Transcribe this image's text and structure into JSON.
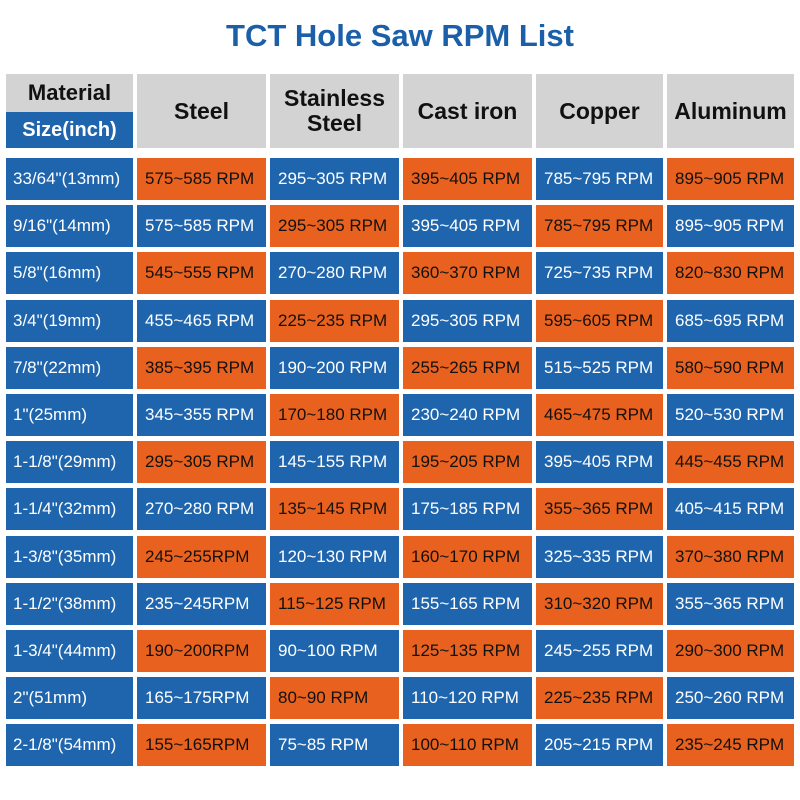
{
  "title": "TCT Hole Saw RPM List",
  "header": {
    "material_label": "Material",
    "size_label": "Size(inch)",
    "columns": [
      "Steel",
      "Stainless\nSteel",
      "Cast iron",
      "Copper",
      "Aluminum"
    ]
  },
  "rows": [
    {
      "size": "33/64\"(13mm)",
      "values": [
        "575~585 RPM",
        "295~305 RPM",
        "395~405 RPM",
        "785~795 RPM",
        "895~905 RPM"
      ]
    },
    {
      "size": "9/16\"(14mm)",
      "values": [
        "575~585 RPM",
        "295~305 RPM",
        "395~405 RPM",
        "785~795 RPM",
        "895~905 RPM"
      ]
    },
    {
      "size": "5/8\"(16mm)",
      "values": [
        "545~555 RPM",
        "270~280 RPM",
        "360~370 RPM",
        "725~735 RPM",
        "820~830 RPM"
      ]
    },
    {
      "size": "3/4\"(19mm)",
      "values": [
        "455~465 RPM",
        "225~235 RPM",
        "295~305 RPM",
        "595~605 RPM",
        "685~695 RPM"
      ]
    },
    {
      "size": "7/8\"(22mm)",
      "values": [
        "385~395 RPM",
        "190~200 RPM",
        "255~265 RPM",
        "515~525 RPM",
        "580~590 RPM"
      ]
    },
    {
      "size": "1\"(25mm)",
      "values": [
        "345~355 RPM",
        "170~180 RPM",
        "230~240 RPM",
        "465~475 RPM",
        "520~530 RPM"
      ]
    },
    {
      "size": "1-1/8\"(29mm)",
      "values": [
        "295~305 RPM",
        "145~155 RPM",
        "195~205 RPM",
        "395~405 RPM",
        "445~455 RPM"
      ]
    },
    {
      "size": "1-1/4\"(32mm)",
      "values": [
        "270~280 RPM",
        "135~145 RPM",
        "175~185 RPM",
        "355~365 RPM",
        "405~415 RPM"
      ]
    },
    {
      "size": "1-3/8\"(35mm)",
      "values": [
        "245~255RPM",
        "120~130 RPM",
        "160~170 RPM",
        "325~335 RPM",
        "370~380 RPM"
      ]
    },
    {
      "size": "1-1/2\"(38mm)",
      "values": [
        "235~245RPM",
        "115~125 RPM",
        "155~165 RPM",
        "310~320 RPM",
        "355~365 RPM"
      ]
    },
    {
      "size": "1-3/4\"(44mm)",
      "values": [
        "190~200RPM",
        "90~100 RPM",
        "125~135 RPM",
        "245~255 RPM",
        "290~300 RPM"
      ]
    },
    {
      "size": "2\"(51mm)",
      "values": [
        "165~175RPM",
        "80~90 RPM",
        "110~120 RPM",
        "225~235 RPM",
        "250~260 RPM"
      ]
    },
    {
      "size": "2-1/8\"(54mm)",
      "values": [
        "155~165RPM",
        "75~85 RPM",
        "100~110 RPM",
        "205~215 RPM",
        "235~245 RPM"
      ]
    }
  ],
  "colors": {
    "blue": "#1f65ad",
    "orange": "#e8611e",
    "header_gray": "#d3d3d3",
    "title_blue": "#1a5fa8"
  }
}
